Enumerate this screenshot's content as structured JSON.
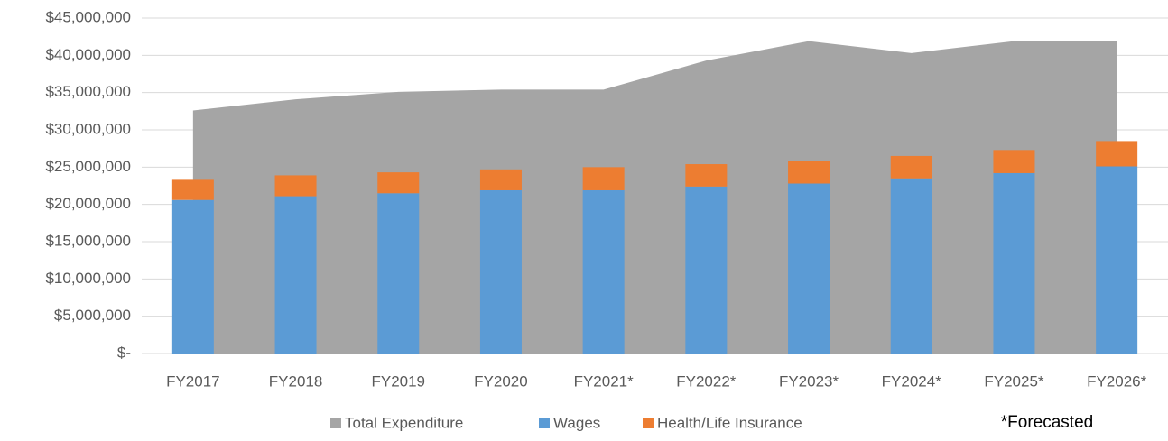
{
  "chart_data": {
    "type": "bar-area",
    "categories": [
      "FY2017",
      "FY2018",
      "FY2019",
      "FY2020",
      "FY2021*",
      "FY2022*",
      "FY2023*",
      "FY2024*",
      "FY2025*",
      "FY2026*"
    ],
    "series": [
      {
        "name": "Total Expenditure",
        "color": "#a5a5a5",
        "kind": "area",
        "values": [
          32600000,
          34100000,
          35100000,
          35400000,
          35400000,
          39300000,
          41900000,
          40300000,
          41900000,
          41900000
        ]
      },
      {
        "name": "Wages",
        "color": "#5b9bd5",
        "kind": "bar",
        "values": [
          20600000,
          21100000,
          21500000,
          21900000,
          21900000,
          22400000,
          22800000,
          23500000,
          24200000,
          25100000
        ]
      },
      {
        "name": "Health/Life Insurance",
        "color": "#ed7d31",
        "kind": "bar",
        "values": [
          2700000,
          2800000,
          2800000,
          2800000,
          3100000,
          3000000,
          3000000,
          3000000,
          3100000,
          3400000
        ]
      }
    ],
    "ylim": [
      0,
      45000000
    ],
    "yticks": [
      {
        "value": 0,
        "label": "$-"
      },
      {
        "value": 5000000,
        "label": "$5,000,000"
      },
      {
        "value": 10000000,
        "label": "$10,000,000"
      },
      {
        "value": 15000000,
        "label": "$15,000,000"
      },
      {
        "value": 20000000,
        "label": "$20,000,000"
      },
      {
        "value": 25000000,
        "label": "$25,000,000"
      },
      {
        "value": 30000000,
        "label": "$30,000,000"
      },
      {
        "value": 35000000,
        "label": "$35,000,000"
      },
      {
        "value": 40000000,
        "label": "$40,000,000"
      },
      {
        "value": 45000000,
        "label": "$45,000,000"
      }
    ],
    "grid": true,
    "legend": "bottom",
    "annotation": "*Forecasted"
  }
}
